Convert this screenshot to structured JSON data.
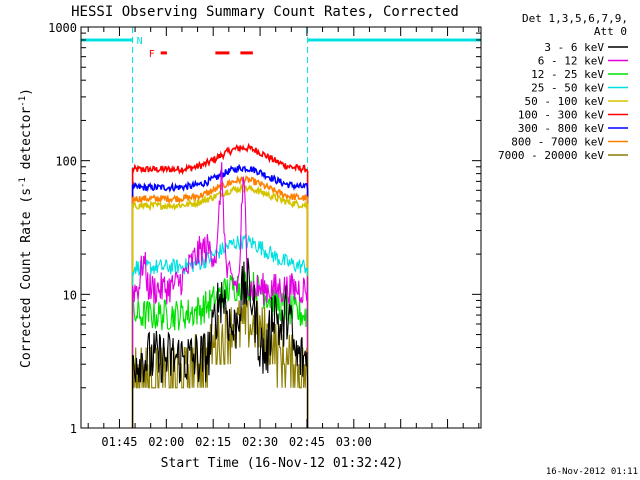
{
  "chart_data": {
    "type": "line",
    "title": "HESSI Observing Summary Count Rates, Corrected",
    "xlabel": "Start Time (16-Nov-12 01:32:42)",
    "ylabel": "Corrected Count Rate (s⁻¹ detector⁻¹)",
    "yscale": "log",
    "ylim": [
      1,
      1000
    ],
    "xlim_minutes_after_0132": [
      0,
      128
    ],
    "y_tick_labels": [
      "1",
      "10",
      "100",
      "1000"
    ],
    "x_tick_labels": [
      "01:45",
      "02:00",
      "02:15",
      "02:30",
      "02:45",
      "03:00"
    ],
    "legend_header": [
      "Det 1,3,5,6,7,9,",
      "Att 0"
    ],
    "legend_position": "right",
    "markers": {
      "night_label": "N",
      "flare_label": "F",
      "night_periods_minutes": [
        [
          0,
          16.5
        ],
        [
          72.5,
          128
        ]
      ],
      "flare_flag_segments_minutes": [
        [
          25.5,
          27.5
        ],
        [
          43,
          47.5
        ],
        [
          51,
          55
        ]
      ]
    },
    "series": [
      {
        "name": "3 - 6 keV",
        "color": "#000000",
        "base": 3.3,
        "peaks": [
          [
            45,
            2.0,
            2.5
          ],
          [
            53,
            2.5,
            3.0
          ],
          [
            62,
            1.5,
            1.5
          ],
          [
            66,
            1.3,
            1.5
          ]
        ]
      },
      {
        "name": "6 - 12 keV",
        "color": "#e000e0",
        "base": 11.0,
        "peaks": [
          [
            45,
            3.5,
            0.8
          ],
          [
            52,
            4.5,
            0.8
          ],
          [
            40,
            1.0,
            6
          ],
          [
            20,
            0.6,
            1.0
          ]
        ]
      },
      {
        "name": "12 - 25 keV",
        "color": "#00e000",
        "base": 7.0,
        "peaks": [
          [
            52,
            0.7,
            10
          ]
        ]
      },
      {
        "name": "25 - 50 keV",
        "color": "#00e0e0",
        "base": 16.0,
        "peaks": [
          [
            52,
            0.55,
            10
          ]
        ]
      },
      {
        "name": "50 - 100 keV",
        "color": "#d4c400",
        "base": 46.0,
        "peaks": [
          [
            52,
            0.35,
            11
          ]
        ]
      },
      {
        "name": "100 - 300 keV",
        "color": "#ff0000",
        "base": 86.0,
        "peaks": [
          [
            52,
            0.45,
            10
          ]
        ]
      },
      {
        "name": "300 - 800 keV",
        "color": "#0000ff",
        "base": 63.0,
        "peaks": [
          [
            52,
            0.4,
            10
          ]
        ]
      },
      {
        "name": "800 - 7000 keV",
        "color": "#ff8000",
        "base": 52.0,
        "peaks": [
          [
            52,
            0.38,
            10
          ]
        ]
      },
      {
        "name": "7000 - 20000 keV",
        "color": "#8b7d00",
        "base": 2.5,
        "peaks": [
          [
            52,
            1.4,
            11
          ]
        ]
      }
    ],
    "data_range_minutes": [
      16.5,
      72.5
    ]
  },
  "footer": {
    "timestamp": "16-Nov-2012 01:11"
  }
}
